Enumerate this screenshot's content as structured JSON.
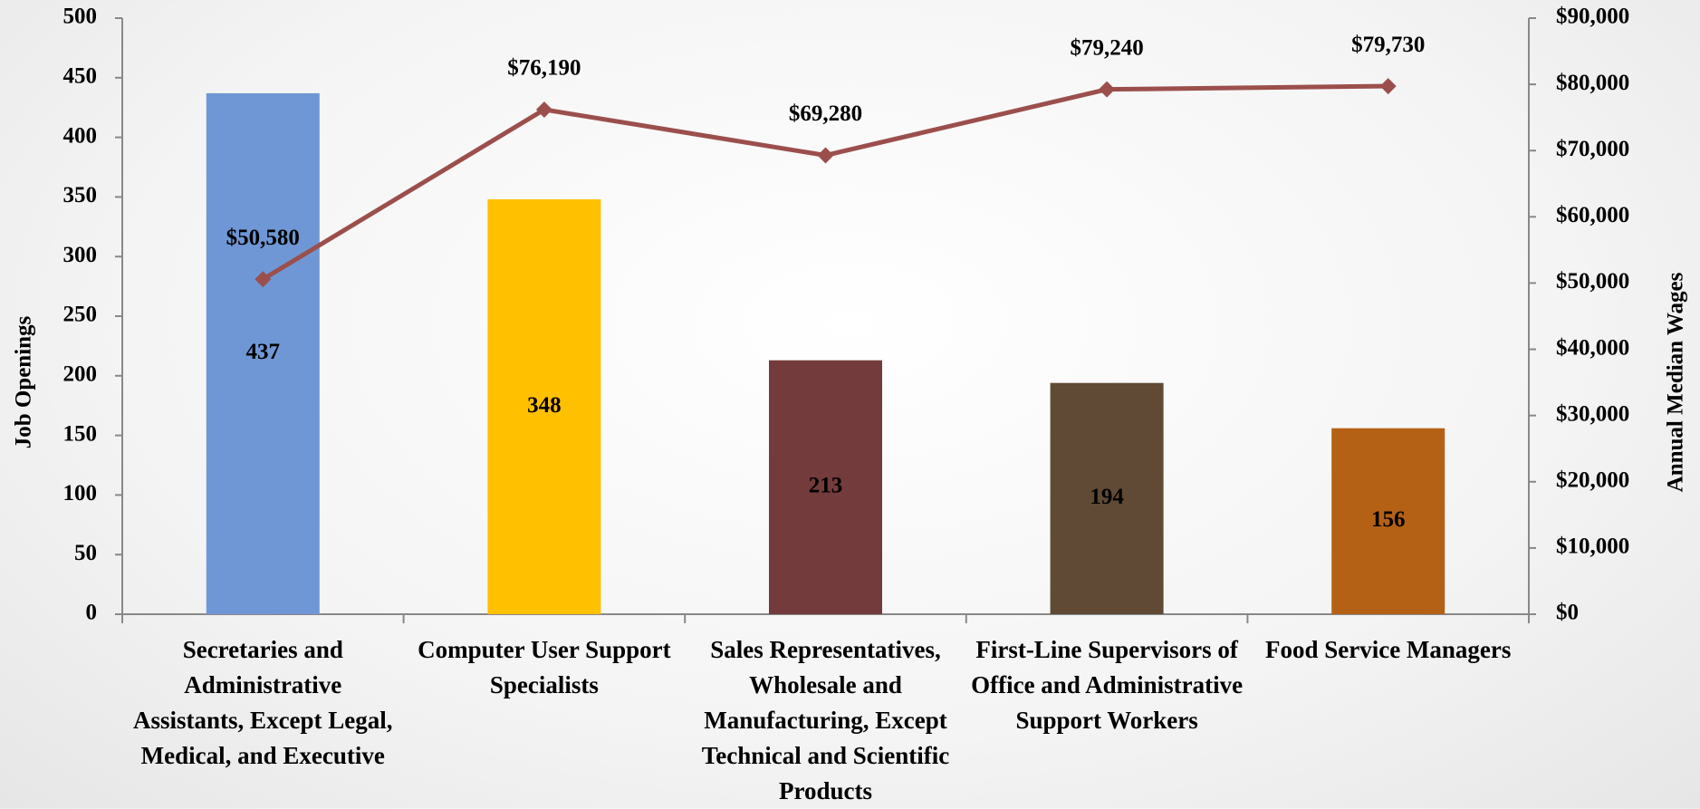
{
  "chart_data": {
    "type": "bar-line",
    "categories": [
      "Secretaries and Administrative Assistants, Except Legal, Medical, and Executive",
      "Computer User Support Specialists",
      "Sales Representatives, Wholesale and Manufacturing, Except Technical and Scientific Products",
      "First-Line Supervisors of Office and Administrative Support Workers",
      "Food Service Managers"
    ],
    "series": [
      {
        "name": "Job Openings",
        "type": "bar",
        "colors": [
          "#6f97d5",
          "#ffc000",
          "#733b3b",
          "#604a35",
          "#b46116"
        ],
        "values": [
          437,
          348,
          213,
          194,
          156
        ]
      },
      {
        "name": "Annual Median Wages",
        "type": "line",
        "axis": "y2",
        "color": "#9b4f4c",
        "values": [
          50580,
          76190,
          69280,
          79240,
          79730
        ],
        "value_labels": [
          "$50,580",
          "$76,190",
          "$69,280",
          "$79,240",
          "$79,730"
        ]
      }
    ],
    "ylabel": "Job Openings",
    "y2label": "Annual Median Wages",
    "ylim": [
      0,
      500
    ],
    "yticks": [
      0,
      50,
      100,
      150,
      200,
      250,
      300,
      350,
      400,
      450,
      500
    ],
    "y2lim": [
      0,
      90000
    ],
    "y2ticks": [
      {
        "value": 0,
        "label": "$0"
      },
      {
        "value": 10000,
        "label": "$10,000"
      },
      {
        "value": 20000,
        "label": "$20,000"
      },
      {
        "value": 30000,
        "label": "$30,000"
      },
      {
        "value": 40000,
        "label": "$40,000"
      },
      {
        "value": 50000,
        "label": "$50,000"
      },
      {
        "value": 60000,
        "label": "$60,000"
      },
      {
        "value": 70000,
        "label": "$70,000"
      },
      {
        "value": 80000,
        "label": "$80,000"
      },
      {
        "value": 90000,
        "label": "$90,000"
      }
    ]
  }
}
